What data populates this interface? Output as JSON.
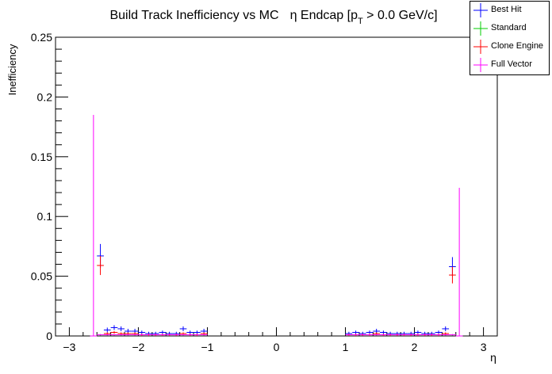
{
  "chart_data": {
    "type": "scatter",
    "title_main": "Build Track Inefficiency vs MC",
    "title_eta": "η Endcap [p",
    "title_sub": "T",
    "title_tail": " > 0.0 GeV/c]",
    "xlabel": "η",
    "ylabel": "Inefficiency",
    "xlim": [
      -3.2,
      3.2
    ],
    "ylim": [
      0,
      0.25
    ],
    "x_ticks": [
      -3,
      -2,
      -1,
      0,
      1,
      2,
      3
    ],
    "x_tick_labels": [
      "−3",
      "−2",
      "−1",
      "0",
      "1",
      "2",
      "3"
    ],
    "y_ticks": [
      0,
      0.05,
      0.1,
      0.15,
      0.2,
      0.25
    ],
    "y_tick_labels": [
      "0",
      "0.05",
      "0.1",
      "0.15",
      "0.2",
      "0.25"
    ],
    "grid": false,
    "legend_position": "top-right",
    "series": [
      {
        "name": "Best Hit",
        "color": "#0000ff",
        "x": [
          -2.55,
          -2.45,
          -2.35,
          -2.25,
          -2.15,
          -2.05,
          -1.95,
          -1.85,
          -1.75,
          -1.65,
          -1.55,
          -1.45,
          -1.35,
          -1.25,
          -1.15,
          -1.05,
          1.05,
          1.15,
          1.25,
          1.35,
          1.45,
          1.55,
          1.65,
          1.75,
          1.85,
          1.95,
          2.05,
          2.15,
          2.25,
          2.35,
          2.45,
          2.55
        ],
        "y": [
          0.067,
          0.005,
          0.007,
          0.006,
          0.004,
          0.004,
          0.003,
          0.002,
          0.002,
          0.003,
          0.002,
          0.002,
          0.006,
          0.003,
          0.003,
          0.004,
          0.002,
          0.003,
          0.002,
          0.003,
          0.004,
          0.003,
          0.002,
          0.002,
          0.002,
          0.002,
          0.003,
          0.002,
          0.002,
          0.003,
          0.006,
          0.058
        ],
        "err": [
          0.01,
          0.002,
          0.002,
          0.002,
          0.002,
          0.002,
          0.0015,
          0.0015,
          0.0015,
          0.0015,
          0.0015,
          0.0015,
          0.002,
          0.0015,
          0.0015,
          0.002,
          0.0015,
          0.0015,
          0.0015,
          0.0015,
          0.002,
          0.0015,
          0.0015,
          0.0015,
          0.0015,
          0.0015,
          0.0015,
          0.0015,
          0.0015,
          0.0015,
          0.002,
          0.008
        ]
      },
      {
        "name": "Standard",
        "color": "#00cc00",
        "x": [
          -2.55,
          -2.45,
          -2.35,
          -2.25,
          -2.15,
          -2.05,
          -1.95,
          -1.85,
          -1.75,
          -1.65,
          -1.55,
          -1.45,
          -1.35,
          -1.25,
          -1.15,
          -1.05,
          1.05,
          1.15,
          1.25,
          1.35,
          1.45,
          1.55,
          1.65,
          1.75,
          1.85,
          1.95,
          2.05,
          2.15,
          2.25,
          2.35,
          2.45,
          2.55
        ],
        "y": [
          0.001,
          0.001,
          0.001,
          0.001,
          0.001,
          0.001,
          0.001,
          0.001,
          0.001,
          0.001,
          0.001,
          0.001,
          0.001,
          0.001,
          0.001,
          0.001,
          0.001,
          0.001,
          0.001,
          0.001,
          0.001,
          0.001,
          0.001,
          0.001,
          0.001,
          0.001,
          0.001,
          0.001,
          0.001,
          0.001,
          0.001,
          0.001
        ],
        "err": [
          0.0005,
          0.0005,
          0.0005,
          0.0005,
          0.0005,
          0.0005,
          0.0005,
          0.0005,
          0.0005,
          0.0005,
          0.0005,
          0.0005,
          0.0005,
          0.0005,
          0.0005,
          0.0005,
          0.0005,
          0.0005,
          0.0005,
          0.0005,
          0.0005,
          0.0005,
          0.0005,
          0.0005,
          0.0005,
          0.0005,
          0.0005,
          0.0005,
          0.0005,
          0.0005,
          0.0005,
          0.0005
        ]
      },
      {
        "name": "Clone Engine",
        "color": "#ff0000",
        "x": [
          -2.55,
          -2.45,
          -2.35,
          -2.25,
          -2.15,
          -2.05,
          -1.95,
          -1.85,
          -1.75,
          -1.65,
          -1.55,
          -1.45,
          -1.35,
          -1.25,
          -1.15,
          -1.05,
          1.05,
          1.15,
          1.25,
          1.35,
          1.45,
          1.55,
          1.65,
          1.75,
          1.85,
          1.95,
          2.05,
          2.15,
          2.25,
          2.35,
          2.45,
          2.55
        ],
        "y": [
          0.059,
          0.002,
          0.003,
          0.002,
          0.002,
          0.002,
          0.001,
          0.001,
          0.001,
          0.001,
          0.001,
          0.001,
          0.002,
          0.001,
          0.001,
          0.002,
          0.001,
          0.001,
          0.001,
          0.001,
          0.002,
          0.001,
          0.001,
          0.001,
          0.001,
          0.001,
          0.001,
          0.001,
          0.001,
          0.001,
          0.002,
          0.051
        ],
        "err": [
          0.008,
          0.001,
          0.001,
          0.001,
          0.001,
          0.001,
          0.001,
          0.001,
          0.001,
          0.001,
          0.001,
          0.001,
          0.001,
          0.001,
          0.001,
          0.001,
          0.001,
          0.001,
          0.001,
          0.001,
          0.001,
          0.001,
          0.001,
          0.001,
          0.001,
          0.001,
          0.001,
          0.001,
          0.001,
          0.001,
          0.001,
          0.007
        ]
      },
      {
        "name": "Full Vector",
        "color": "#ff00ff",
        "x": [
          -2.65,
          -2.55,
          -2.45,
          -2.35,
          -2.25,
          -2.15,
          -2.05,
          -1.95,
          -1.85,
          -1.75,
          -1.65,
          -1.55,
          -1.45,
          -1.35,
          -1.25,
          -1.15,
          -1.05,
          1.05,
          1.15,
          1.25,
          1.35,
          1.45,
          1.55,
          1.65,
          1.75,
          1.85,
          1.95,
          2.05,
          2.15,
          2.25,
          2.35,
          2.45,
          2.55,
          2.65
        ],
        "y": [
          0.0,
          0.001,
          0.001,
          0.001,
          0.001,
          0.001,
          0.001,
          0.001,
          0.001,
          0.001,
          0.001,
          0.001,
          0.001,
          0.001,
          0.001,
          0.001,
          0.001,
          0.001,
          0.001,
          0.001,
          0.001,
          0.001,
          0.001,
          0.001,
          0.001,
          0.001,
          0.001,
          0.001,
          0.001,
          0.001,
          0.001,
          0.001,
          0.001,
          0.0
        ],
        "err": [
          0.185,
          0.0005,
          0.0005,
          0.0005,
          0.0005,
          0.0005,
          0.0005,
          0.0005,
          0.0005,
          0.0005,
          0.0005,
          0.0005,
          0.0005,
          0.0005,
          0.0005,
          0.0005,
          0.0005,
          0.0005,
          0.0005,
          0.0005,
          0.0005,
          0.0005,
          0.0005,
          0.0005,
          0.0005,
          0.0005,
          0.0005,
          0.0005,
          0.0005,
          0.0005,
          0.0005,
          0.0005,
          0.0005,
          0.124
        ]
      }
    ]
  }
}
